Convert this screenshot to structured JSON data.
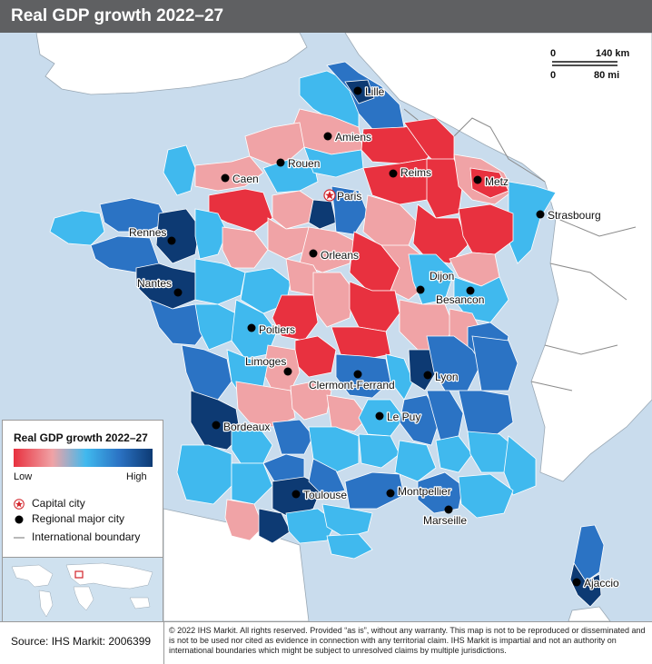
{
  "title": "Real GDP growth 2022–27",
  "scale_bar": {
    "km": "140 km",
    "mi": "80 mi",
    "zero": "0"
  },
  "colors": {
    "sea": "#c9dced",
    "land_outside": "#ffffff",
    "low": "#e8313f",
    "low_light": "#f0a3a6",
    "mid": "#40b9ee",
    "mid_dark": "#2b73c4",
    "high": "#0d3a73"
  },
  "cities": [
    {
      "name": "Lille"
    },
    {
      "name": "Amiens"
    },
    {
      "name": "Rouen"
    },
    {
      "name": "Caen"
    },
    {
      "name": "Reims"
    },
    {
      "name": "Metz"
    },
    {
      "name": "Paris",
      "capital": true
    },
    {
      "name": "Strasbourg"
    },
    {
      "name": "Rennes"
    },
    {
      "name": "Orleans"
    },
    {
      "name": "Nantes"
    },
    {
      "name": "Dijon"
    },
    {
      "name": "Besancon"
    },
    {
      "name": "Poitiers"
    },
    {
      "name": "Limoges"
    },
    {
      "name": "Lyon"
    },
    {
      "name": "Clermont-Ferrand"
    },
    {
      "name": "Le Puy"
    },
    {
      "name": "Bordeaux"
    },
    {
      "name": "Toulouse"
    },
    {
      "name": "Montpellier"
    },
    {
      "name": "Marseille"
    },
    {
      "name": "Ajaccio"
    }
  ],
  "legend": {
    "title": "Real GDP growth 2022–27",
    "low": "Low",
    "high": "High",
    "items": [
      {
        "label": "Capital city",
        "icon": "star-circle-icon"
      },
      {
        "label": "Regional major city",
        "icon": "black-dot-icon"
      },
      {
        "label": "International boundary",
        "icon": "gray-line-icon"
      }
    ]
  },
  "footer": {
    "source": "Source: IHS Markit: 2006399",
    "copyright": "© 2022 IHS Markit. All rights reserved. Provided “as is”, without any warranty. This map is not to be reproduced or disseminated and is not to be used nor cited as evidence in connection with any territorial claim. IHS Markit is impartial and not an authority on international boundaries which might be subject to unresolved claims by multiple jurisdictions."
  }
}
